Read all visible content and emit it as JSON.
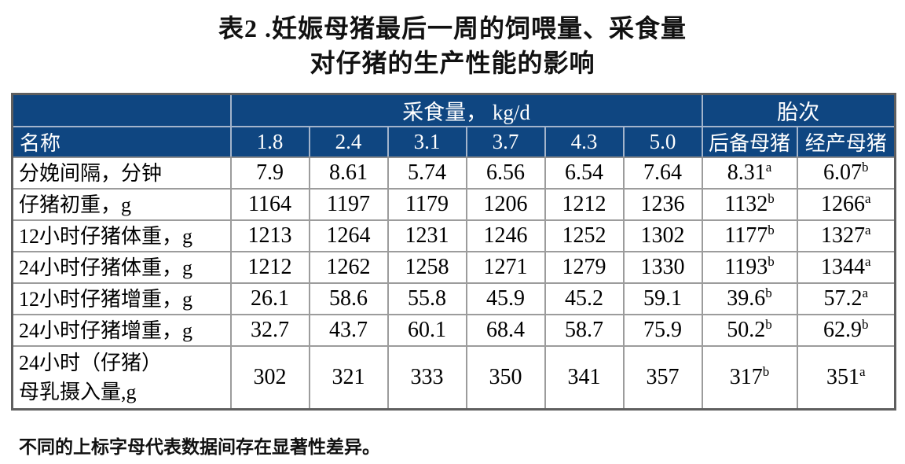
{
  "title": {
    "line1": "表2 .妊娠母猪最后一周的饲喂量、采食量",
    "line2": "对仔猪的生产性能的影响"
  },
  "table": {
    "group_headers": {
      "intake": "采食量， kg/d",
      "parity": "胎次"
    },
    "name_header": "名称",
    "columns": [
      "1.8",
      "2.4",
      "3.1",
      "3.7",
      "4.3",
      "5.0",
      "后备母猪",
      "经产母猪"
    ],
    "rows": [
      {
        "label": "分娩间隔，分钟",
        "cells": [
          "7.9",
          "8.61",
          "5.74",
          "6.56",
          "6.54",
          "7.64",
          {
            "v": "8.31",
            "sup": "a"
          },
          {
            "v": "6.07",
            "sup": "b"
          }
        ]
      },
      {
        "label": "仔猪初重，g",
        "cells": [
          "1164",
          "1197",
          "1179",
          "1206",
          "1212",
          "1236",
          {
            "v": "1132",
            "sup": "b"
          },
          {
            "v": "1266",
            "sup": "a"
          }
        ]
      },
      {
        "label": "12小时仔猪体重，g",
        "cells": [
          "1213",
          "1264",
          "1231",
          "1246",
          "1252",
          "1302",
          {
            "v": "1177",
            "sup": "b"
          },
          {
            "v": "1327",
            "sup": "a"
          }
        ]
      },
      {
        "label": "24小时仔猪体重，g",
        "cells": [
          "1212",
          "1262",
          "1258",
          "1271",
          "1279",
          "1330",
          {
            "v": "1193",
            "sup": "b"
          },
          {
            "v": "1344",
            "sup": "a"
          }
        ]
      },
      {
        "label": "12小时仔猪增重，g",
        "cells": [
          "26.1",
          "58.6",
          "55.8",
          "45.9",
          "45.2",
          "59.1",
          {
            "v": "39.6",
            "sup": "b"
          },
          {
            "v": "57.2",
            "sup": "a"
          }
        ]
      },
      {
        "label": "24小时仔猪增重，g",
        "cells": [
          "32.7",
          "43.7",
          "60.1",
          "68.4",
          "58.7",
          "75.9",
          {
            "v": "50.2",
            "sup": "b"
          },
          {
            "v": "62.9",
            "sup": "b"
          }
        ]
      },
      {
        "label": "24小时（仔猪）\n母乳摄入量,g",
        "tall": true,
        "cells": [
          "302",
          "321",
          "333",
          "350",
          "341",
          "357",
          {
            "v": "317",
            "sup": "b"
          },
          {
            "v": "351",
            "sup": "a"
          }
        ]
      }
    ]
  },
  "footnote": "不同的上标字母代表数据间存在显著性差异。",
  "colors": {
    "header_bg": "#0f4681",
    "header_text": "#ffffff",
    "header_grid": "#a3b4cb",
    "body_grid": "#9c9c9c",
    "outer_border": "#5f5f5f",
    "text": "#000000"
  }
}
